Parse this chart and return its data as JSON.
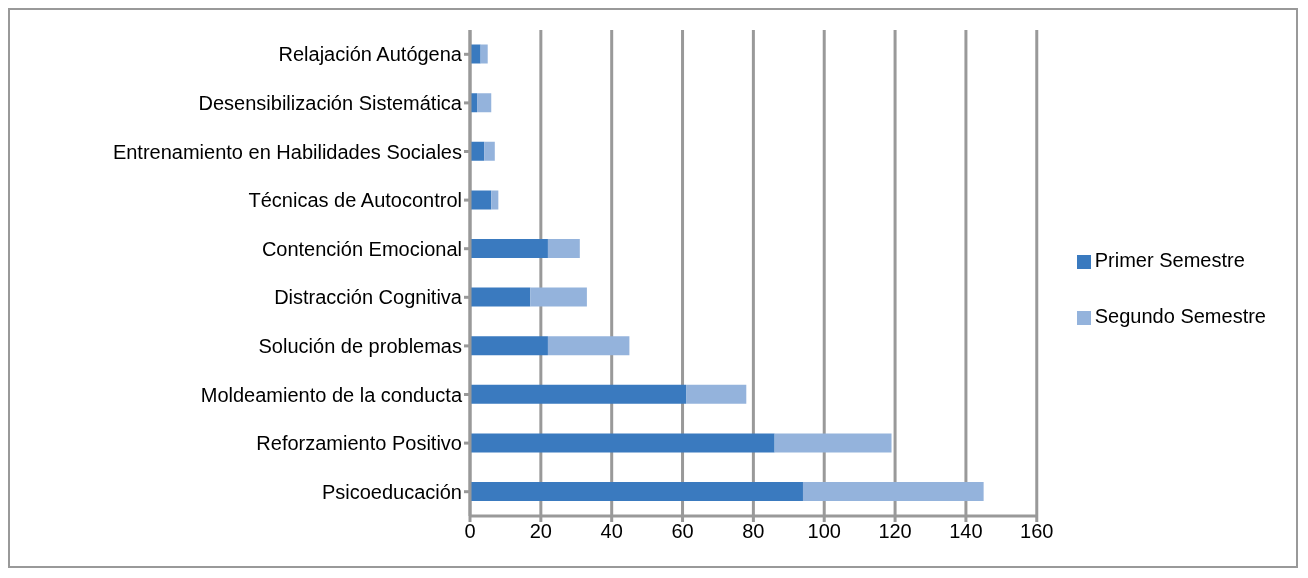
{
  "chart_data": {
    "type": "bar",
    "orientation": "horizontal",
    "stacked": true,
    "categories": [
      "Relajación Autógena",
      "Desensibilización Sistemática",
      "Entrenamiento en Habilidades Sociales",
      "Técnicas de Autocontrol",
      "Contención Emocional",
      "Distracción Cognitiva",
      "Solución de problemas",
      "Moldeamiento de la conducta",
      "Reforzamiento Positivo",
      "Psicoeducación"
    ],
    "series": [
      {
        "name": "Primer Semestre",
        "color": "#3a7abf",
        "values": [
          3,
          2,
          4,
          6,
          22,
          17,
          22,
          61,
          86,
          94
        ]
      },
      {
        "name": "Segundo Semestre",
        "color": "#94b3dc",
        "values": [
          2,
          4,
          3,
          2,
          9,
          16,
          23,
          17,
          33,
          51
        ]
      }
    ],
    "xlim": [
      0,
      160
    ],
    "xticks": [
      0,
      20,
      40,
      60,
      80,
      100,
      120,
      140,
      160
    ],
    "grid": "x",
    "legend": "right"
  }
}
